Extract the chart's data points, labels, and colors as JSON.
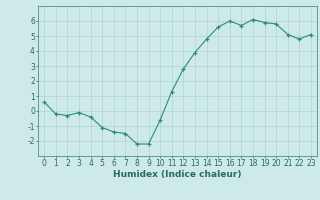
{
  "x": [
    0,
    1,
    2,
    3,
    4,
    5,
    6,
    7,
    8,
    9,
    10,
    11,
    12,
    13,
    14,
    15,
    16,
    17,
    18,
    19,
    20,
    21,
    22,
    23
  ],
  "y": [
    0.6,
    -0.2,
    -0.3,
    -0.1,
    -0.4,
    -1.1,
    -1.4,
    -1.5,
    -2.2,
    -2.2,
    -0.6,
    1.3,
    2.8,
    3.9,
    4.8,
    5.6,
    6.0,
    5.7,
    6.1,
    5.9,
    5.8,
    5.1,
    4.8,
    5.1
  ],
  "xlabel": "Humidex (Indice chaleur)",
  "line_color": "#2e8b77",
  "marker_color": "#2e8b77",
  "bg_color": "#ceeae8",
  "grid_color": "#aed4d0",
  "axis_color": "#3a7a70",
  "text_color": "#2a6a60",
  "ylim": [
    -3,
    7
  ],
  "xlim": [
    -0.5,
    23.5
  ],
  "yticks": [
    -2,
    -1,
    0,
    1,
    2,
    3,
    4,
    5,
    6
  ],
  "xticks": [
    0,
    1,
    2,
    3,
    4,
    5,
    6,
    7,
    8,
    9,
    10,
    11,
    12,
    13,
    14,
    15,
    16,
    17,
    18,
    19,
    20,
    21,
    22,
    23
  ],
  "tick_fontsize": 5.5,
  "xlabel_fontsize": 6.5
}
